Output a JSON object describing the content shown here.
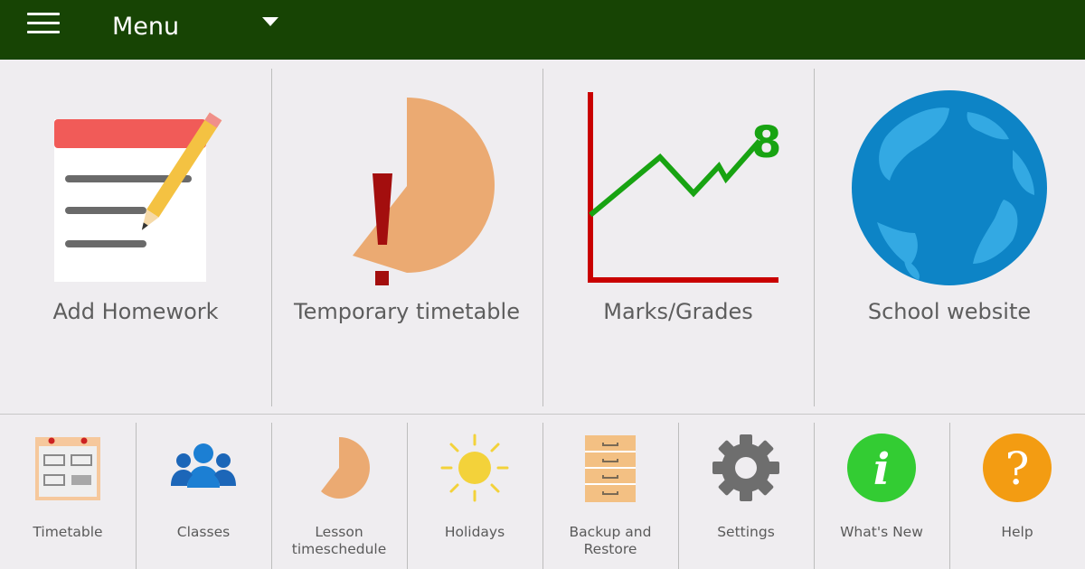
{
  "header": {
    "title": "Menu",
    "background_color": "#174404",
    "icons": {
      "menu": "hamburger-icon",
      "dropdown": "caret-down-icon"
    }
  },
  "main_tiles": [
    {
      "label": "Add Homework",
      "icon": "homework-notepad-icon"
    },
    {
      "label": "Temporary timetable",
      "icon": "temporary-timetable-icon"
    },
    {
      "label": "Marks/Grades",
      "icon": "grades-chart-icon"
    },
    {
      "label": "School website",
      "icon": "globe-icon"
    }
  ],
  "bottom_tiles": [
    {
      "label": "Timetable",
      "icon": "calendar-icon"
    },
    {
      "label": "Classes",
      "icon": "people-icon"
    },
    {
      "label": "Lesson\ntimeschedule",
      "icon": "clock-pie-icon"
    },
    {
      "label": "Holidays",
      "icon": "sun-icon"
    },
    {
      "label": "Backup and\nRestore",
      "icon": "filing-cabinet-icon"
    },
    {
      "label": "Settings",
      "icon": "gear-icon"
    },
    {
      "label": "What's New",
      "icon": "info-icon"
    },
    {
      "label": "Help",
      "icon": "question-icon"
    }
  ],
  "colors": {
    "background": "#efedf0",
    "green_accent": "#1aa31a",
    "red_accent": "#cc0000",
    "globe_blue": "#1b87c9",
    "orange_help": "#f39c12",
    "info_green": "#33cc33"
  }
}
